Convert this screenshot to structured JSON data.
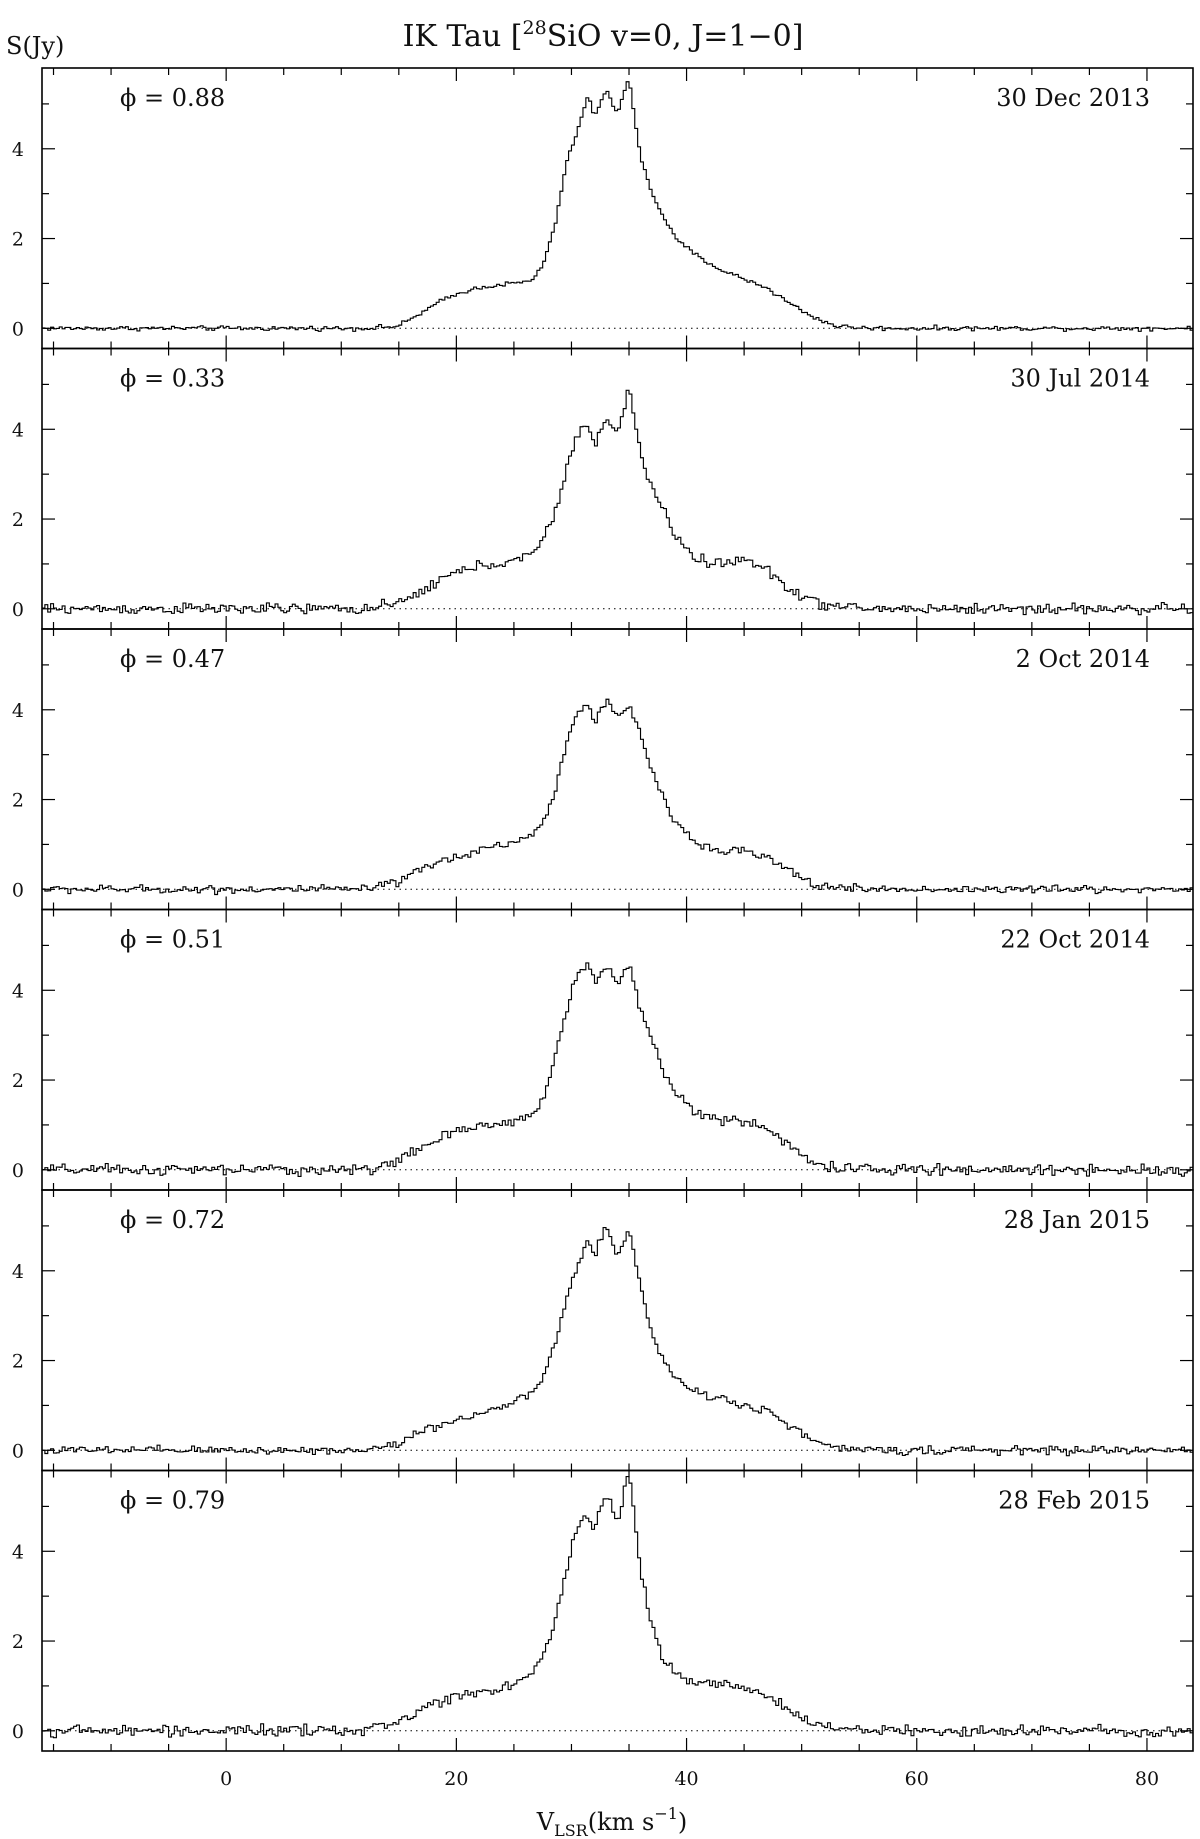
{
  "chart_data": {
    "type": "line",
    "title": "IK Tau [28SiO v=0, J=1−0]",
    "title_parts": {
      "prefix": "IK Tau [",
      "superscript": "28",
      "suffix": "SiO v=0, J=1−0]"
    },
    "ylabel": "S(Jy)",
    "xlabel": {
      "base": "V",
      "subscript": "LSR",
      "middle": "(km s",
      "superscript": "−1",
      "end": ")"
    },
    "xlim": [
      -16,
      84
    ],
    "ylim": [
      -0.45,
      5.8
    ],
    "xticks": [
      0,
      20,
      40,
      60,
      80
    ],
    "yticks": [
      0,
      2,
      4
    ],
    "grid": false,
    "legend": "none",
    "line_color": "#000000",
    "profile_x": [
      -16,
      12,
      15,
      17,
      19,
      21,
      23,
      25,
      26.5,
      27.5,
      28.5,
      29.5,
      30.5,
      31.5,
      32,
      33,
      34,
      35,
      36,
      37,
      38,
      39,
      41,
      43,
      45,
      47,
      49,
      51,
      53,
      56,
      84
    ],
    "series": [
      {
        "name": "30 Dec 2013",
        "phase": "ϕ = 0.88",
        "noise": 0.025,
        "profile_y": [
          0,
          0,
          0.05,
          0.35,
          0.65,
          0.85,
          0.95,
          1.0,
          1.05,
          1.4,
          2.2,
          3.6,
          4.4,
          5.2,
          4.7,
          5.3,
          4.8,
          5.6,
          3.8,
          3.0,
          2.5,
          2.0,
          1.6,
          1.3,
          1.1,
          0.9,
          0.55,
          0.25,
          0.05,
          0,
          0
        ]
      },
      {
        "name": "30 Jul 2014",
        "phase": "ϕ = 0.33",
        "noise": 0.06,
        "profile_y": [
          0,
          0,
          0.1,
          0.4,
          0.7,
          0.9,
          1.0,
          1.05,
          1.2,
          1.5,
          2.1,
          3.0,
          3.9,
          4.1,
          3.7,
          4.2,
          3.9,
          4.9,
          3.5,
          2.6,
          2.3,
          1.6,
          1.1,
          1.0,
          1.1,
          0.85,
          0.45,
          0.15,
          0.05,
          0,
          0
        ]
      },
      {
        "name": "2 Oct 2014",
        "phase": "ϕ = 0.47",
        "noise": 0.045,
        "profile_y": [
          0,
          0,
          0.15,
          0.45,
          0.65,
          0.8,
          0.95,
          1.05,
          1.2,
          1.45,
          2.1,
          3.2,
          4.0,
          4.1,
          3.7,
          4.2,
          3.8,
          4.1,
          3.5,
          2.6,
          2.0,
          1.5,
          1.0,
          0.9,
          0.85,
          0.7,
          0.4,
          0.1,
          0.05,
          0,
          0
        ]
      },
      {
        "name": "22 Oct 2014",
        "phase": "ϕ = 0.51",
        "noise": 0.06,
        "profile_y": [
          0,
          0,
          0.2,
          0.5,
          0.75,
          0.9,
          1.0,
          1.1,
          1.25,
          1.5,
          2.4,
          3.5,
          4.4,
          4.6,
          4.1,
          4.6,
          4.1,
          4.6,
          3.6,
          2.9,
          2.2,
          1.7,
          1.3,
          1.1,
          1.05,
          0.95,
          0.5,
          0.15,
          0.05,
          0,
          0
        ]
      },
      {
        "name": "28 Jan 2015",
        "phase": "ϕ = 0.72",
        "noise": 0.045,
        "profile_y": [
          0,
          0,
          0.15,
          0.45,
          0.6,
          0.75,
          0.9,
          1.05,
          1.25,
          1.6,
          2.3,
          3.3,
          4.1,
          4.7,
          4.3,
          5.0,
          4.3,
          4.9,
          3.7,
          2.6,
          2.0,
          1.6,
          1.3,
          1.15,
          1.0,
          0.9,
          0.55,
          0.2,
          0.05,
          0,
          0
        ]
      },
      {
        "name": "28 Feb 2015",
        "phase": "ϕ = 0.79",
        "noise": 0.06,
        "profile_y": [
          0,
          0,
          0.2,
          0.5,
          0.7,
          0.85,
          0.9,
          1.05,
          1.3,
          1.6,
          2.3,
          3.5,
          4.6,
          4.8,
          4.5,
          5.3,
          4.6,
          5.9,
          3.6,
          2.3,
          1.6,
          1.3,
          1.1,
          1.05,
          0.95,
          0.75,
          0.45,
          0.15,
          0.05,
          0,
          0
        ]
      }
    ]
  }
}
